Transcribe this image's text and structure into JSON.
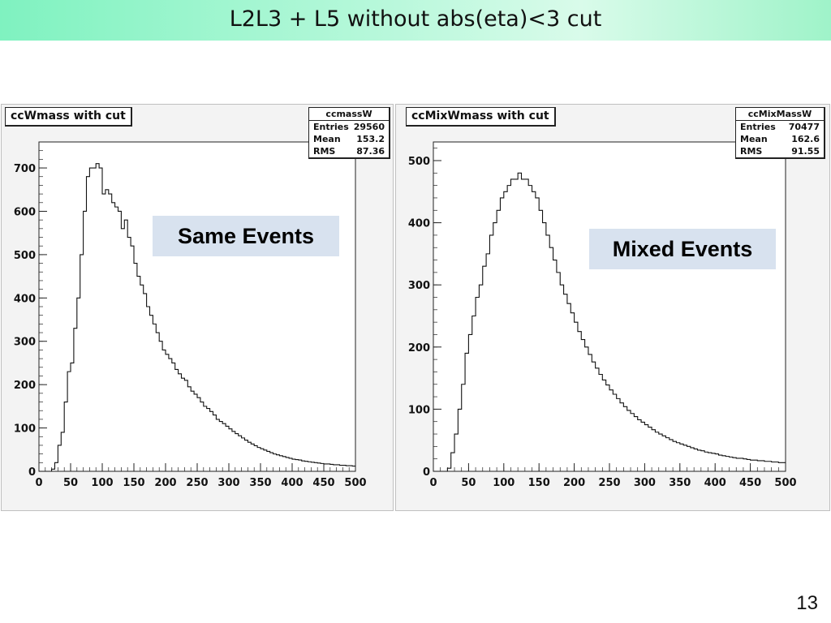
{
  "slide": {
    "title": "L2L3 + L5 without abs(eta)<3 cut",
    "page_number": "13",
    "title_bar_color": "#9ff3c9",
    "label_box_color": "#d8e2ef"
  },
  "panels": [
    {
      "hist_title": "ccWmass with cut",
      "stats": {
        "name": "ccmassW",
        "entries_label": "Entries",
        "entries": "29560",
        "mean_label": "Mean",
        "mean": "153.2",
        "rms_label": "RMS",
        "rms": "87.36"
      },
      "label": "Same Events"
    },
    {
      "hist_title": "ccMixWmass with cut",
      "stats": {
        "name": "ccMixMassW",
        "entries_label": "Entries",
        "entries": "70477",
        "mean_label": "Mean",
        "mean": "162.6",
        "rms_label": "RMS",
        "rms": "91.55"
      },
      "label": "Mixed Events"
    }
  ],
  "chart_data": [
    {
      "type": "histogram",
      "title": "ccWmass with cut",
      "xlim": [
        0,
        500
      ],
      "ylim": [
        0,
        760
      ],
      "x_ticks": [
        0,
        50,
        100,
        150,
        200,
        250,
        300,
        350,
        400,
        450,
        500
      ],
      "y_ticks": [
        0,
        100,
        200,
        300,
        400,
        500,
        600,
        700
      ],
      "bin_width": 5,
      "values": [
        0,
        0,
        0,
        0,
        5,
        20,
        60,
        90,
        160,
        230,
        250,
        330,
        400,
        500,
        600,
        680,
        700,
        700,
        710,
        700,
        640,
        650,
        640,
        620,
        610,
        600,
        560,
        580,
        540,
        520,
        480,
        450,
        430,
        410,
        380,
        360,
        340,
        320,
        300,
        280,
        270,
        260,
        250,
        235,
        225,
        215,
        210,
        195,
        185,
        178,
        170,
        160,
        150,
        145,
        138,
        130,
        120,
        115,
        110,
        104,
        98,
        92,
        87,
        82,
        77,
        72,
        67,
        63,
        59,
        55,
        52,
        49,
        46,
        43,
        40,
        38,
        36,
        34,
        32,
        30,
        28,
        27,
        26,
        24,
        23,
        22,
        21,
        20,
        19,
        18,
        17,
        17,
        16,
        15,
        15,
        14,
        14,
        13,
        13,
        12
      ]
    },
    {
      "type": "histogram",
      "title": "ccMixWmass with cut",
      "xlim": [
        0,
        500
      ],
      "ylim": [
        0,
        530
      ],
      "x_ticks": [
        0,
        50,
        100,
        150,
        200,
        250,
        300,
        350,
        400,
        450,
        500
      ],
      "y_ticks": [
        0,
        100,
        200,
        300,
        400,
        500
      ],
      "bin_width": 5,
      "values": [
        0,
        0,
        0,
        0,
        5,
        30,
        60,
        100,
        140,
        190,
        220,
        250,
        280,
        300,
        330,
        350,
        380,
        400,
        420,
        440,
        450,
        460,
        470,
        470,
        480,
        470,
        470,
        460,
        450,
        440,
        420,
        400,
        380,
        360,
        340,
        320,
        300,
        285,
        270,
        255,
        240,
        225,
        212,
        200,
        188,
        176,
        166,
        156,
        147,
        139,
        131,
        124,
        117,
        110,
        104,
        98,
        93,
        88,
        83,
        79,
        75,
        71,
        67,
        63,
        60,
        57,
        54,
        51,
        48,
        46,
        44,
        42,
        40,
        38,
        36,
        34,
        33,
        31,
        30,
        29,
        28,
        26,
        25,
        24,
        23,
        22,
        21,
        21,
        20,
        19,
        18,
        18,
        17,
        17,
        16,
        16,
        15,
        15,
        14,
        14
      ]
    }
  ]
}
